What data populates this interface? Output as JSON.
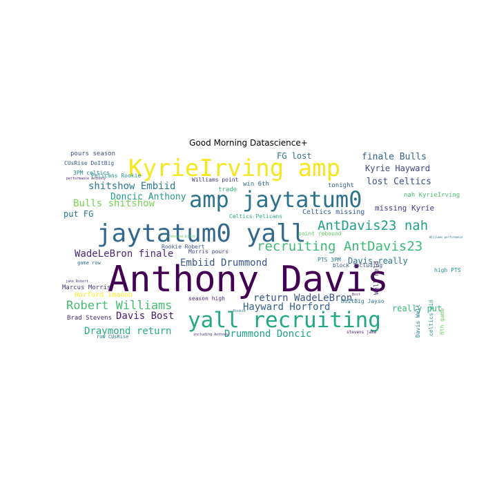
{
  "title": "Good Morning Datascience+",
  "words": [
    {
      "text": "Anthony Davis",
      "color": "#440154"
    },
    {
      "text": "KyrieIrving amp",
      "color": "#f6e620"
    },
    {
      "text": "amp jaytatum0",
      "color": "#2c728e"
    },
    {
      "text": "jaytatum0 yall",
      "color": "#31688e"
    },
    {
      "text": "yall recruiting",
      "color": "#22a884"
    },
    {
      "text": "recruiting AntDavis23",
      "color": "#3bbb75"
    },
    {
      "text": "AntDavis23 nah",
      "color": "#1f9e89"
    },
    {
      "text": "Robert Williams",
      "color": "#44bf70"
    },
    {
      "text": "Draymond return",
      "color": "#26ad81"
    },
    {
      "text": "Drummond Doncic",
      "color": "#1fa088"
    },
    {
      "text": "Hayward Horford",
      "color": "#33638d"
    },
    {
      "text": "return WadeLeBron",
      "color": "#3b528b"
    },
    {
      "text": "WadeLeBron finale",
      "color": "#482878"
    },
    {
      "text": "Embiid Drummond",
      "color": "#39568c"
    },
    {
      "text": "Davis Bost",
      "color": "#481a6c"
    },
    {
      "text": "shitshow Embiid",
      "color": "#2a788e"
    },
    {
      "text": "Bulls shitshow",
      "color": "#7ad151"
    },
    {
      "text": "Doncic Anthony",
      "color": "#1f9a8a"
    },
    {
      "text": "finale Bulls",
      "color": "#33638d"
    },
    {
      "text": "Kyrie Hayward",
      "color": "#414487"
    },
    {
      "text": "lost Celtics",
      "color": "#3e4a89"
    },
    {
      "text": "FG lost",
      "color": "#2d708e"
    },
    {
      "text": "missing Kyrie",
      "color": "#443983"
    },
    {
      "text": "Celtics missing",
      "color": "#365c8d"
    },
    {
      "text": "put FG",
      "color": "#2c728e"
    },
    {
      "text": "Davis really",
      "color": "#2a788e"
    },
    {
      "text": "really put",
      "color": "#35b779"
    },
    {
      "text": "Horford imaooo",
      "color": "#fde725"
    },
    {
      "text": "Brad Stevens",
      "color": "#482878"
    },
    {
      "text": "pours season",
      "color": "#3e4a89"
    },
    {
      "text": "CUsRise DoItBig",
      "color": "#38588c"
    },
    {
      "text": "3PM celtics",
      "color": "#26828e"
    },
    {
      "text": "performance Anthony",
      "color": "#481f70"
    },
    {
      "text": "Pelicans Rookie",
      "color": "#21918c"
    },
    {
      "text": "Rookie Robert",
      "color": "#3b528b"
    },
    {
      "text": "Morris pours",
      "color": "#414487"
    },
    {
      "text": "Marcus Morris",
      "color": "#46327e"
    },
    {
      "text": "season high",
      "color": "#482475"
    },
    {
      "text": "game row",
      "color": "#2c728e"
    },
    {
      "text": "row CUsRise",
      "color": "#2a788e"
    },
    {
      "text": "Williams point",
      "color": "#46337f"
    },
    {
      "text": "win 6th",
      "color": "#31688e"
    },
    {
      "text": "trade",
      "color": "#38b977"
    },
    {
      "text": "tonight",
      "color": "#355f8d"
    },
    {
      "text": "nah KyrieIrving",
      "color": "#4ac16d"
    },
    {
      "text": "Celtics Pelicans",
      "color": "#26ad81"
    },
    {
      "text": "point rebound",
      "color": "#5ec962"
    },
    {
      "text": "PTS 3PM",
      "color": "#2c728e"
    },
    {
      "text": "block including",
      "color": "#3b528b"
    },
    {
      "text": "high PTS",
      "color": "#21918c"
    },
    {
      "text": "DoItBig Jayso",
      "color": "#2a788e"
    },
    {
      "text": "Well held",
      "color": "#482475"
    },
    {
      "text": "Davis Well",
      "color": "#287d8e"
    },
    {
      "text": "celtics win",
      "color": "#1f988b"
    },
    {
      "text": "6th game",
      "color": "#6ccd5a"
    },
    {
      "text": "stevens jake",
      "color": "#481a6c"
    },
    {
      "text": "including Anthony",
      "color": "#472d7b"
    },
    {
      "text": "jake Robert",
      "color": "#414487"
    },
    {
      "text": "rebound block",
      "color": "#5ec962"
    },
    {
      "text": "Williams performance",
      "color": "#2c728e"
    },
    {
      "text": "Rookie",
      "color": "#2a788e"
    },
    {
      "text": "Bost",
      "color": "#481a6c"
    }
  ]
}
